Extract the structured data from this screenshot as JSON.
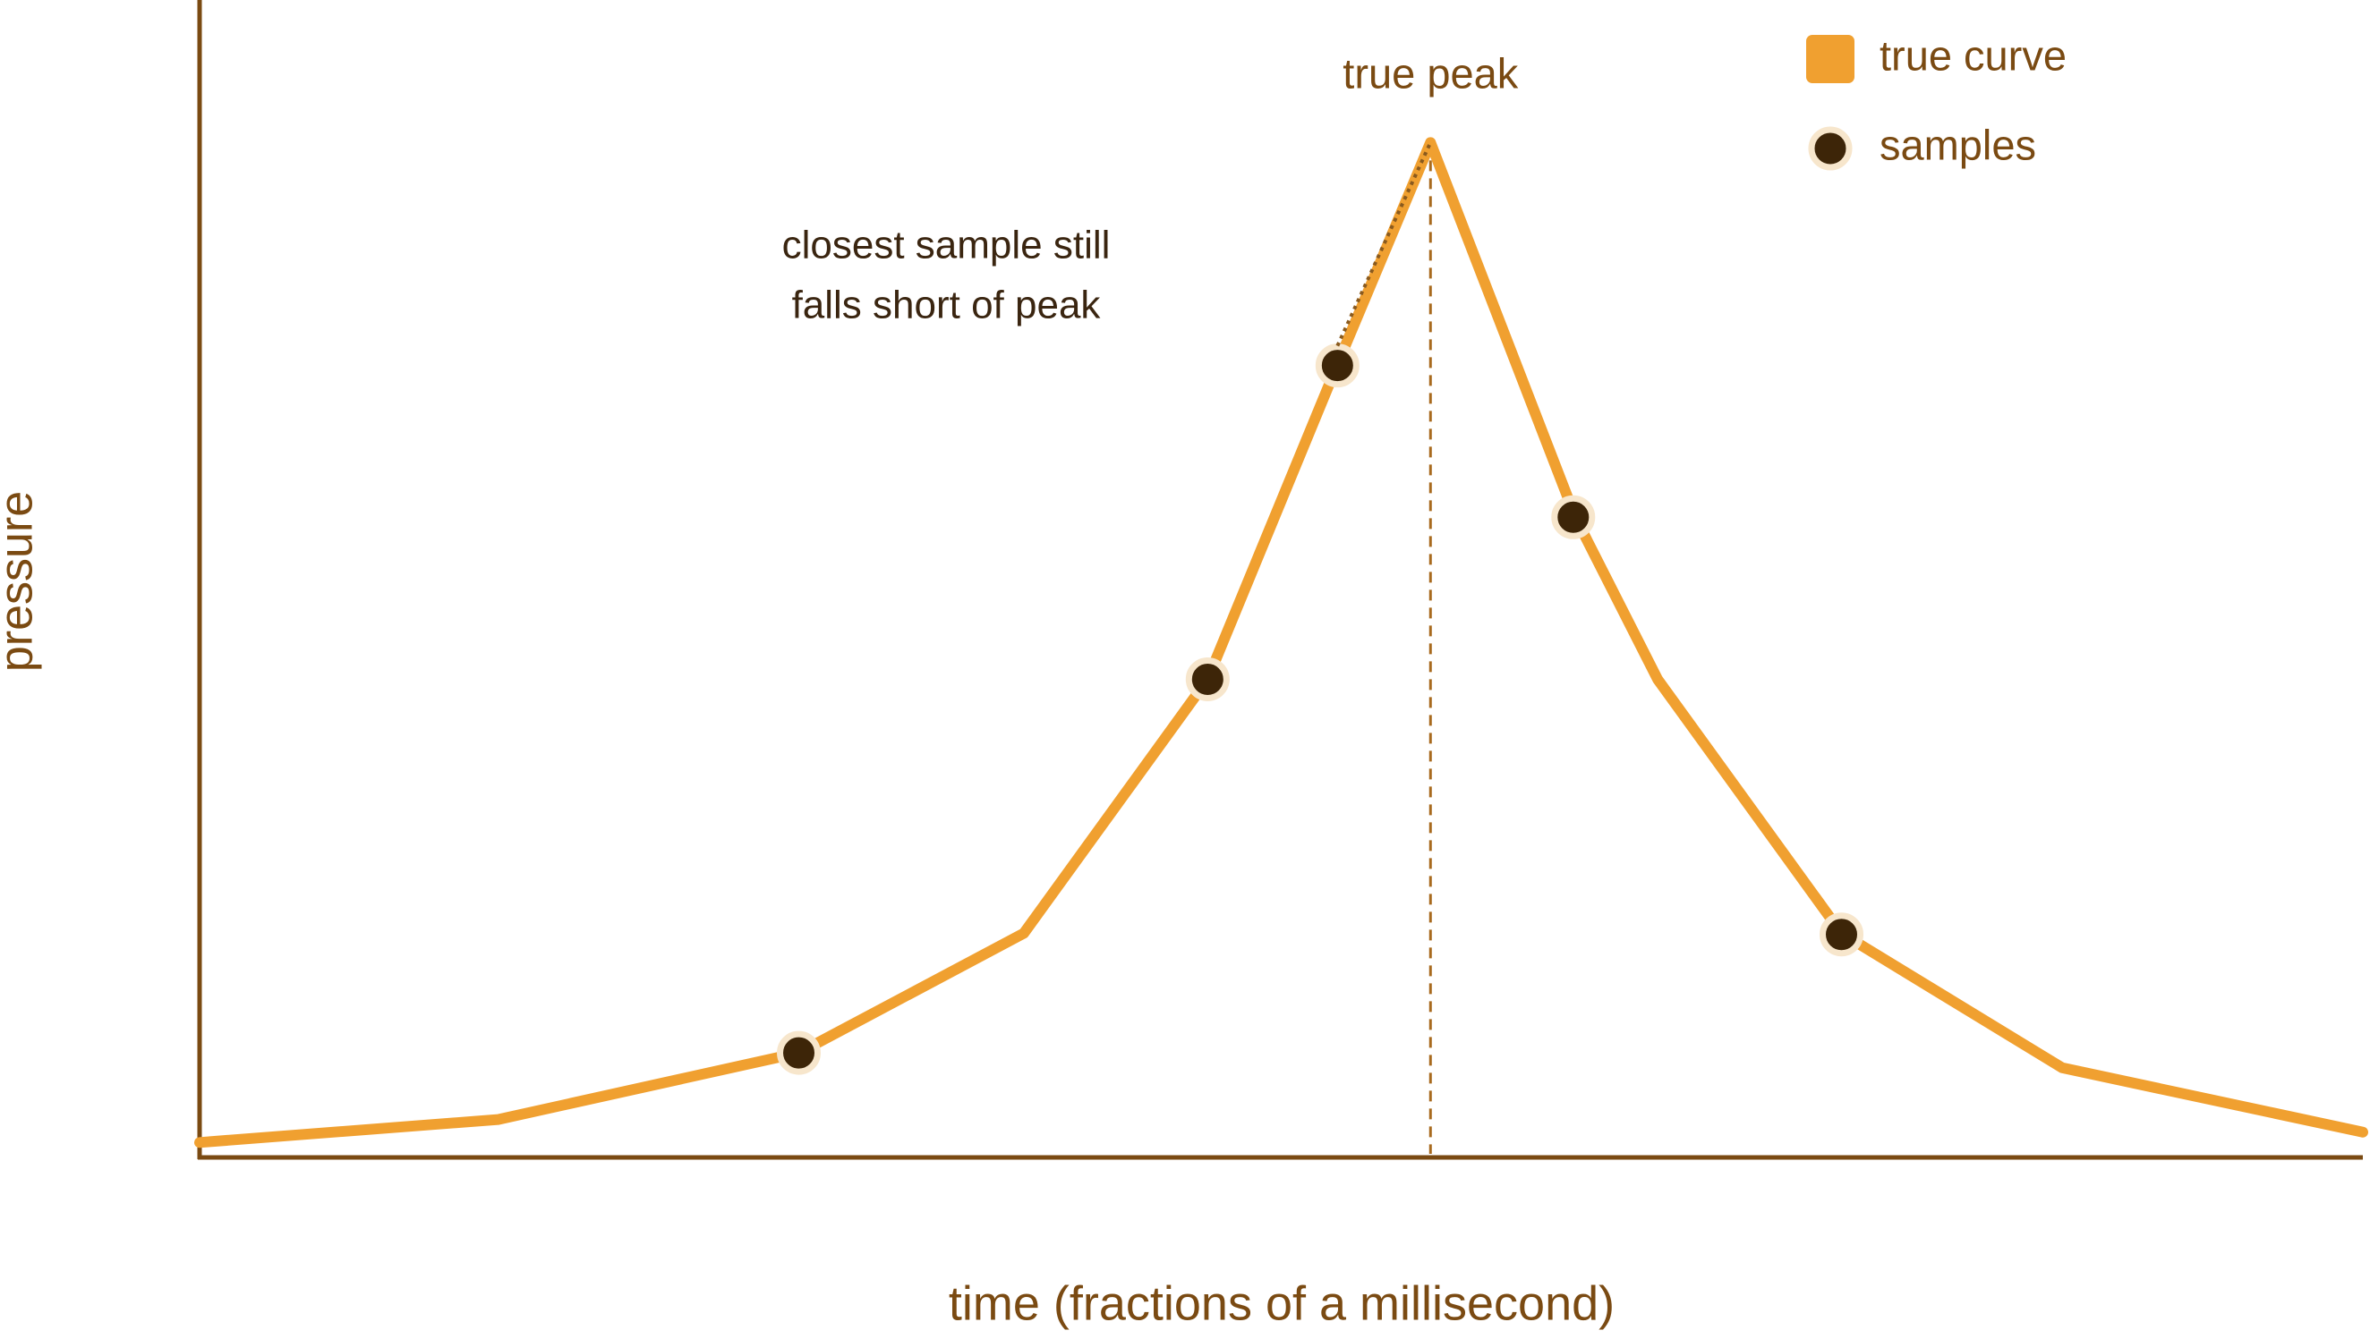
{
  "chart_data": {
    "type": "line",
    "x_label": "time (fractions of a millisecond)",
    "y_label": "pressure",
    "xlim": [
      0,
      100
    ],
    "ylim": [
      0,
      100
    ],
    "legend": "upper right",
    "series": [
      {
        "name": "true curve",
        "type": "line",
        "color": "#f0a030",
        "x": [
          0,
          13.8,
          27.7,
          38.1,
          46.6,
          52.6,
          56.9,
          63.6,
          67.4,
          75.9,
          86.1,
          100
        ],
        "values": [
          1.3,
          3.3,
          9.1,
          19.5,
          41.6,
          69.0,
          88.3,
          55.7,
          41.6,
          19.5,
          7.8,
          2.2
        ]
      },
      {
        "name": "samples",
        "type": "scatter",
        "color": "#3d2508",
        "x": [
          27.7,
          46.6,
          52.6,
          63.5,
          75.9
        ],
        "values": [
          9.1,
          41.6,
          68.9,
          55.7,
          19.4
        ]
      }
    ],
    "annotations": [
      {
        "text": "true peak"
      },
      {
        "lines": [
          "closest sample still",
          "falls short of peak"
        ]
      }
    ]
  }
}
